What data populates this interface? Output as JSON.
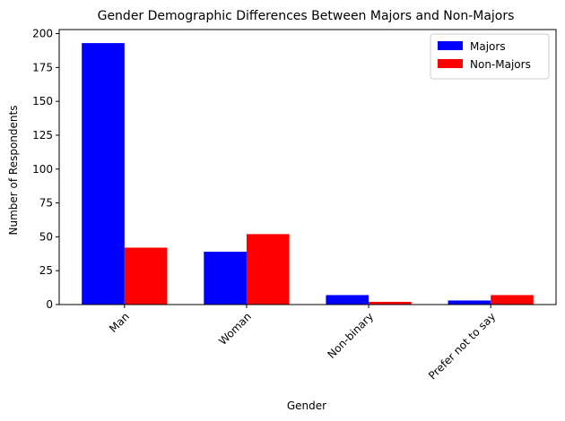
{
  "chart_data": {
    "type": "bar",
    "title": "Gender Demographic Differences Between Majors and Non-Majors",
    "xlabel": "Gender",
    "ylabel": "Number of Respondents",
    "categories": [
      "Man",
      "Woman",
      "Non-binary",
      "Prefer not to say"
    ],
    "series": [
      {
        "name": "Majors",
        "color": "#0000ff",
        "values": [
          193,
          39,
          7,
          3
        ]
      },
      {
        "name": "Non-Majors",
        "color": "#ff0000",
        "values": [
          42,
          52,
          2,
          7
        ]
      }
    ],
    "ylim": [
      0,
      203
    ],
    "yticks": [
      "0",
      "25",
      "50",
      "75",
      "100",
      "125",
      "150",
      "175",
      "200"
    ],
    "grid": false,
    "legend_position": "top-right"
  }
}
